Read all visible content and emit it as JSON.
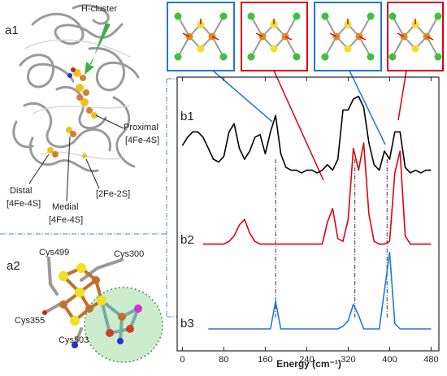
{
  "labels": {
    "a1": "a1",
    "a2": "a2",
    "h_cluster": "H-cluster",
    "proximal": [
      "Proximal",
      "[4Fe-4S]"
    ],
    "distal": [
      "Distal",
      "[4Fe-4S]"
    ],
    "medial": [
      "Medial",
      "[4Fe-4S]"
    ],
    "fe2s2": "[2Fe-2S]",
    "cys499": "Cys499",
    "cys300": "Cys300",
    "cys355": "Cys355",
    "cys503": "Cys503"
  },
  "chart_data": {
    "type": "line",
    "xlabel": "Energy (cm⁻¹)",
    "x": [
      0,
      10,
      20,
      30,
      40,
      50,
      60,
      70,
      80,
      90,
      100,
      110,
      120,
      130,
      140,
      150,
      160,
      170,
      180,
      190,
      200,
      210,
      220,
      230,
      240,
      250,
      260,
      270,
      280,
      290,
      300,
      310,
      320,
      330,
      340,
      350,
      360,
      370,
      380,
      390,
      400,
      410,
      420,
      430,
      440,
      450,
      460,
      470,
      480
    ],
    "series": [
      {
        "name": "b1",
        "color": "#000000",
        "values": [
          75,
          78,
          80,
          80,
          78,
          74,
          70,
          69,
          71,
          80,
          83,
          74,
          70,
          73,
          78,
          79,
          72,
          80,
          86,
          72,
          67,
          66,
          66,
          65,
          66,
          66,
          65,
          66,
          68,
          66,
          70,
          88,
          88,
          92,
          93,
          89,
          76,
          68,
          66,
          73,
          70,
          80,
          80,
          67,
          65,
          66,
          65,
          66,
          66
        ]
      },
      {
        "name": "b2",
        "color": "#e0000e",
        "values": [
          null,
          null,
          null,
          null,
          39,
          39,
          39,
          39,
          39,
          40,
          42,
          46,
          48,
          43,
          40,
          39,
          39,
          39,
          39,
          39,
          39,
          39,
          39,
          39,
          39,
          39,
          39,
          39,
          47,
          52,
          41,
          40,
          48,
          74,
          66,
          76,
          50,
          40,
          39,
          39,
          40,
          65,
          73,
          42,
          39,
          39,
          39,
          39,
          39
        ]
      },
      {
        "name": "b3",
        "color": "#1f77e0",
        "values": [
          null,
          null,
          null,
          null,
          null,
          8,
          8,
          8,
          8,
          8,
          8,
          8,
          8,
          8,
          8,
          8,
          8,
          8,
          18,
          8,
          8,
          8,
          8,
          8,
          8,
          8,
          8,
          8,
          8,
          8,
          8,
          9,
          11,
          17,
          13,
          8,
          8,
          8,
          8,
          22,
          36,
          10,
          8,
          8,
          8,
          8,
          8,
          8,
          8
        ]
      }
    ],
    "xlim": [
      -10,
      495
    ],
    "ylim": [
      0,
      100
    ],
    "xticks": [
      0,
      80,
      160,
      240,
      320,
      400,
      480
    ],
    "reference_lines": [
      180,
      333,
      395
    ],
    "grid": false
  }
}
